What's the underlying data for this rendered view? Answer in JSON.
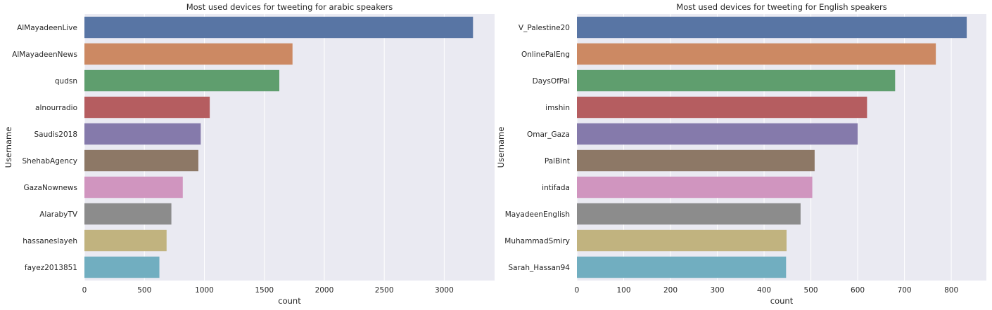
{
  "chart_data": [
    {
      "type": "bar",
      "orientation": "horizontal",
      "title": "Most used devices for tweeting for arabic speakers",
      "xlabel": "count",
      "ylabel": "Username",
      "categories": [
        "AlMayadeenLive",
        "AlMayadeenNews",
        "qudsn",
        "alnourradio",
        "Saudis2018",
        "ShehabAgency",
        "GazaNownews",
        "AlarabyTV",
        "hassaneslayeh",
        "fayez2013851"
      ],
      "values": [
        3240,
        1735,
        1625,
        1045,
        970,
        950,
        820,
        725,
        685,
        625
      ],
      "xlim": [
        0,
        3420
      ],
      "xticks": [
        0,
        500,
        1000,
        1500,
        2000,
        2500,
        3000
      ],
      "grid": true
    },
    {
      "type": "bar",
      "orientation": "horizontal",
      "title": "Most used devices for tweeting for English speakers",
      "xlabel": "count",
      "ylabel": "Username",
      "categories": [
        "V_Palestine20",
        "OnlinePalEng",
        "DaysOfPal",
        "imshin",
        "Omar_Gaza",
        "PalBint",
        "intifada",
        "MayadeenEnglish",
        "MuhammadSmiry",
        "Sarah_Hassan94"
      ],
      "values": [
        833,
        767,
        680,
        620,
        600,
        508,
        503,
        478,
        448,
        447
      ],
      "xlim": [
        0,
        875
      ],
      "xticks": [
        0,
        100,
        200,
        300,
        400,
        500,
        600,
        700,
        800
      ],
      "grid": true
    }
  ],
  "colors": {
    "background": "#eaeaf2",
    "grid": "#ffffff",
    "bars": [
      "#5875a4",
      "#cc8963",
      "#5f9e6e",
      "#b55d60",
      "#857aab",
      "#8d7866",
      "#d095bf",
      "#8c8c8c",
      "#c1b37f",
      "#71aec0"
    ]
  }
}
